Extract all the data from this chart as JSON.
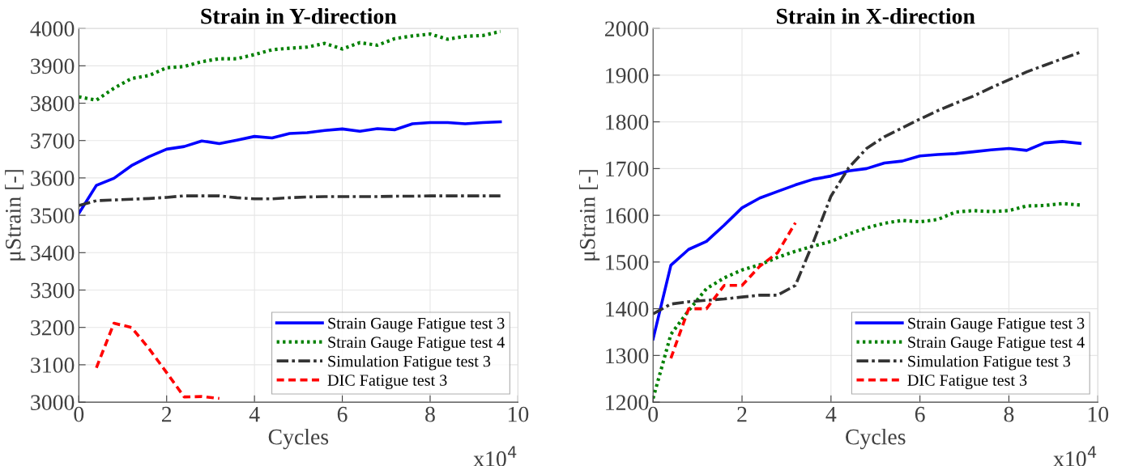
{
  "chart_data": [
    {
      "type": "line",
      "title": "Strain in Y-direction",
      "xlabel": "Cycles",
      "ylabel": "μStrain [-]",
      "annotations": [
        "x10$^{4}$"
      ],
      "x": [
        0,
        0.4,
        0.8,
        1.2,
        1.6,
        2.0,
        2.4,
        2.8,
        3.2,
        3.6,
        4.0,
        4.4,
        4.8,
        5.2,
        5.6,
        6.0,
        6.4,
        6.8,
        7.2,
        7.6,
        8.0,
        8.4,
        8.8,
        9.2,
        9.6
      ],
      "xlim": [
        0,
        10
      ],
      "xticks": [
        0,
        2,
        4,
        6,
        8,
        10
      ],
      "ylim": [
        3000,
        4000
      ],
      "yticks": [
        3000,
        3100,
        3200,
        3300,
        3400,
        3500,
        3600,
        3700,
        3800,
        3900,
        4000
      ],
      "grid": true,
      "legend": "bottom right",
      "series": [
        {
          "name": "Strain Gauge Fatigue test 3",
          "color": "#0000ff",
          "line_style": "solid",
          "values": [
            3505,
            3580,
            3599,
            3633,
            3657,
            3677,
            3684,
            3699,
            3692,
            3701,
            3711,
            3707,
            3719,
            3721,
            3727,
            3731,
            3725,
            3732,
            3729,
            3745,
            3748,
            3748,
            3745,
            3748,
            3750
          ]
        },
        {
          "name": "Strain Gauge Fatigue test 4",
          "color": "#008000",
          "line_style": "dotted",
          "values": [
            3817,
            3808,
            3840,
            3866,
            3874,
            3895,
            3898,
            3911,
            3919,
            3919,
            3930,
            3943,
            3947,
            3950,
            3960,
            3945,
            3962,
            3955,
            3973,
            3980,
            3985,
            3971,
            3979,
            3981,
            3992
          ]
        },
        {
          "name": "Simulation Fatigue test 3",
          "color": "#333333",
          "line_style": "dashdot",
          "values": [
            3526,
            3539,
            3541,
            3543,
            3545,
            3548,
            3552,
            3552,
            3552,
            3547,
            3544,
            3544,
            3547,
            3549,
            3550,
            3550,
            3550,
            3550,
            3551,
            3551,
            3552,
            3552,
            3552,
            3552,
            3552
          ]
        },
        {
          "name": "DIC Fatigue test 3",
          "color": "#ff0000",
          "line_style": "dashed",
          "x": [
            0.4,
            0.8,
            1.2,
            1.6,
            2.0,
            2.4,
            2.8,
            3.2
          ],
          "values": [
            3092,
            3211,
            3200,
            3143,
            3079,
            3014,
            3015,
            3010
          ]
        }
      ]
    },
    {
      "type": "line",
      "title": "Strain in X-direction",
      "xlabel": "Cycles",
      "ylabel": "μStrain [-]",
      "annotations": [
        "x10$^{4}$"
      ],
      "x": [
        0,
        0.4,
        0.8,
        1.2,
        1.6,
        2.0,
        2.4,
        2.8,
        3.2,
        3.6,
        4.0,
        4.4,
        4.8,
        5.2,
        5.6,
        6.0,
        6.4,
        6.8,
        7.2,
        7.6,
        8.0,
        8.4,
        8.8,
        9.2,
        9.6
      ],
      "xlim": [
        0,
        10
      ],
      "xticks": [
        0,
        2,
        4,
        6,
        8,
        10
      ],
      "ylim": [
        1200,
        2000
      ],
      "yticks": [
        1200,
        1300,
        1400,
        1500,
        1600,
        1700,
        1800,
        1900,
        2000
      ],
      "grid": true,
      "legend": "bottom right",
      "series": [
        {
          "name": "Strain Gauge Fatigue test 3",
          "color": "#0000ff",
          "line_style": "solid",
          "values": [
            1335,
            1493,
            1527,
            1544,
            1579,
            1616,
            1637,
            1651,
            1665,
            1677,
            1684,
            1695,
            1700,
            1712,
            1716,
            1727,
            1730,
            1732,
            1736,
            1740,
            1743,
            1739,
            1755,
            1758,
            1754
          ]
        },
        {
          "name": "Strain Gauge Fatigue test 4",
          "color": "#008000",
          "line_style": "dotted",
          "values": [
            1208,
            1345,
            1396,
            1443,
            1466,
            1483,
            1494,
            1510,
            1523,
            1534,
            1544,
            1560,
            1573,
            1583,
            1589,
            1586,
            1591,
            1607,
            1610,
            1608,
            1610,
            1620,
            1621,
            1625,
            1622
          ]
        },
        {
          "name": "Simulation Fatigue test 3",
          "color": "#333333",
          "line_style": "dashdot",
          "values": [
            1389,
            1410,
            1415,
            1418,
            1421,
            1425,
            1429,
            1429,
            1450,
            1542,
            1641,
            1702,
            1743,
            1768,
            1787,
            1806,
            1824,
            1840,
            1855,
            1873,
            1890,
            1907,
            1921,
            1935,
            1949
          ]
        },
        {
          "name": "DIC Fatigue test 3",
          "color": "#ff0000",
          "line_style": "dashed",
          "x": [
            0.4,
            0.8,
            1.2,
            1.6,
            2.0,
            2.4,
            2.8,
            3.2
          ],
          "values": [
            1294,
            1400,
            1400,
            1450,
            1450,
            1491,
            1520,
            1584
          ]
        }
      ]
    }
  ]
}
